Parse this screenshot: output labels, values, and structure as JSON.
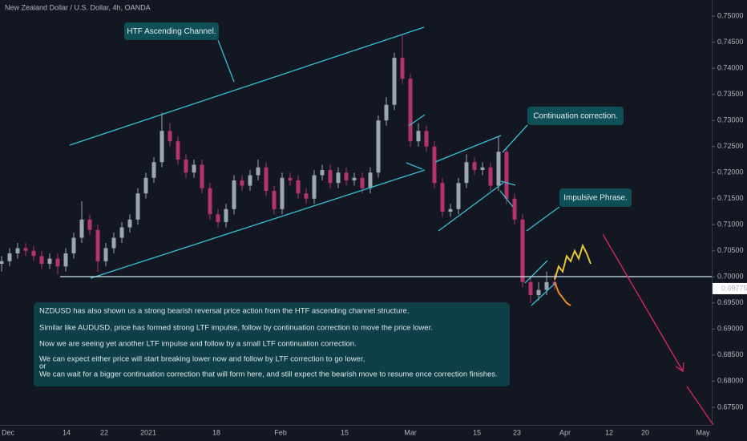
{
  "chart_data": {
    "type": "candlestick",
    "title": "New Zealand Dollar / U.S. Dollar, 4h, OANDA",
    "ylim": [
      0.6716,
      0.7531
    ],
    "yticks": [
      {
        "value": 0.675,
        "label": "0.67500"
      },
      {
        "value": 0.68,
        "label": "0.68000"
      },
      {
        "value": 0.685,
        "label": "0.68500"
      },
      {
        "value": 0.69,
        "label": "0.69000"
      },
      {
        "value": 0.695,
        "label": "0.69500"
      },
      {
        "value": 0.7,
        "label": "0.70000"
      },
      {
        "value": 0.705,
        "label": "0.70500"
      },
      {
        "value": 0.71,
        "label": "0.71000"
      },
      {
        "value": 0.715,
        "label": "0.71500"
      },
      {
        "value": 0.72,
        "label": "0.72000"
      },
      {
        "value": 0.725,
        "label": "0.72500"
      },
      {
        "value": 0.73,
        "label": "0.73000"
      },
      {
        "value": 0.735,
        "label": "0.73500"
      },
      {
        "value": 0.74,
        "label": "0.74000"
      },
      {
        "value": 0.745,
        "label": "0.74500"
      },
      {
        "value": 0.75,
        "label": "0.75000"
      }
    ],
    "xtick_labels": [
      "Dec",
      "14",
      "22",
      "2021",
      "18",
      "Feb",
      "15",
      "Mar",
      "15",
      "23",
      "Apr",
      "12",
      "20",
      "May"
    ],
    "up_color": "#9aa6b0",
    "down_color": "#b4336b",
    "last_price": 0.69775,
    "candles": [
      [
        0.7025,
        0.704,
        0.701,
        0.703
      ],
      [
        0.703,
        0.7055,
        0.702,
        0.7045
      ],
      [
        0.7045,
        0.7065,
        0.7035,
        0.7055
      ],
      [
        0.7055,
        0.7065,
        0.704,
        0.705
      ],
      [
        0.705,
        0.706,
        0.703,
        0.704
      ],
      [
        0.704,
        0.705,
        0.7015,
        0.7025
      ],
      [
        0.7025,
        0.7045,
        0.7015,
        0.7035
      ],
      [
        0.7035,
        0.7045,
        0.7005,
        0.702
      ],
      [
        0.702,
        0.7055,
        0.701,
        0.7045
      ],
      [
        0.7045,
        0.7085,
        0.7035,
        0.7075
      ],
      [
        0.7075,
        0.7145,
        0.7065,
        0.711
      ],
      [
        0.711,
        0.712,
        0.708,
        0.709
      ],
      [
        0.709,
        0.71,
        0.701,
        0.703
      ],
      [
        0.703,
        0.7065,
        0.702,
        0.7055
      ],
      [
        0.7055,
        0.7085,
        0.7045,
        0.7075
      ],
      [
        0.7075,
        0.7105,
        0.7065,
        0.7095
      ],
      [
        0.7095,
        0.712,
        0.7085,
        0.711
      ],
      [
        0.711,
        0.717,
        0.71,
        0.716
      ],
      [
        0.716,
        0.72,
        0.715,
        0.719
      ],
      [
        0.719,
        0.723,
        0.718,
        0.722
      ],
      [
        0.722,
        0.7315,
        0.721,
        0.728
      ],
      [
        0.728,
        0.7295,
        0.725,
        0.726
      ],
      [
        0.726,
        0.727,
        0.7215,
        0.7225
      ],
      [
        0.7225,
        0.7235,
        0.719,
        0.72
      ],
      [
        0.72,
        0.7225,
        0.719,
        0.7215
      ],
      [
        0.7215,
        0.7225,
        0.716,
        0.717
      ],
      [
        0.717,
        0.718,
        0.711,
        0.712
      ],
      [
        0.712,
        0.713,
        0.7095,
        0.7105
      ],
      [
        0.7105,
        0.714,
        0.7095,
        0.713
      ],
      [
        0.713,
        0.7195,
        0.712,
        0.7185
      ],
      [
        0.7185,
        0.7195,
        0.7165,
        0.7175
      ],
      [
        0.7175,
        0.7205,
        0.7165,
        0.7195
      ],
      [
        0.7195,
        0.7225,
        0.7185,
        0.721
      ],
      [
        0.721,
        0.722,
        0.7155,
        0.7165
      ],
      [
        0.7165,
        0.7175,
        0.712,
        0.713
      ],
      [
        0.713,
        0.72,
        0.712,
        0.719
      ],
      [
        0.719,
        0.72,
        0.7175,
        0.7185
      ],
      [
        0.7185,
        0.7195,
        0.715,
        0.716
      ],
      [
        0.716,
        0.717,
        0.714,
        0.715
      ],
      [
        0.715,
        0.7205,
        0.714,
        0.7195
      ],
      [
        0.7195,
        0.7215,
        0.7185,
        0.7205
      ],
      [
        0.7205,
        0.7215,
        0.717,
        0.718
      ],
      [
        0.718,
        0.721,
        0.717,
        0.72
      ],
      [
        0.72,
        0.721,
        0.7175,
        0.7185
      ],
      [
        0.7185,
        0.72,
        0.7175,
        0.719
      ],
      [
        0.719,
        0.72,
        0.716,
        0.717
      ],
      [
        0.717,
        0.721,
        0.716,
        0.72
      ],
      [
        0.72,
        0.731,
        0.719,
        0.73
      ],
      [
        0.73,
        0.7345,
        0.729,
        0.733
      ],
      [
        0.733,
        0.743,
        0.732,
        0.742
      ],
      [
        0.742,
        0.7465,
        0.737,
        0.738
      ],
      [
        0.738,
        0.739,
        0.725,
        0.726
      ],
      [
        0.726,
        0.7295,
        0.725,
        0.728
      ],
      [
        0.728,
        0.729,
        0.724,
        0.725
      ],
      [
        0.725,
        0.726,
        0.717,
        0.718
      ],
      [
        0.718,
        0.719,
        0.7115,
        0.7125
      ],
      [
        0.7125,
        0.714,
        0.7115,
        0.713
      ],
      [
        0.713,
        0.719,
        0.712,
        0.718
      ],
      [
        0.718,
        0.7235,
        0.717,
        0.722
      ],
      [
        0.722,
        0.723,
        0.7195,
        0.7205
      ],
      [
        0.7205,
        0.722,
        0.7195,
        0.721
      ],
      [
        0.721,
        0.722,
        0.7165,
        0.7175
      ],
      [
        0.7175,
        0.727,
        0.7165,
        0.724
      ],
      [
        0.724,
        0.725,
        0.714,
        0.715
      ],
      [
        0.715,
        0.716,
        0.71,
        0.711
      ],
      [
        0.711,
        0.712,
        0.698,
        0.699
      ],
      [
        0.699,
        0.7,
        0.695,
        0.6965
      ],
      [
        0.6965,
        0.699,
        0.6955,
        0.6975
      ],
      [
        0.6975,
        0.701,
        0.6965,
        0.699
      ],
      [
        0.699,
        0.7005,
        0.6975,
        0.6985
      ]
    ],
    "projections": [
      {
        "color": "#e8c43a",
        "values": [
          0.6995,
          0.702,
          0.701,
          0.704,
          0.703,
          0.705,
          0.7035,
          0.706,
          0.7045,
          0.7025
        ]
      },
      {
        "color": "#f08c1e",
        "values": [
          0.699,
          0.697,
          0.696,
          0.695,
          0.6945
        ]
      }
    ],
    "annotations": [
      "HTF Ascending Channel.",
      "Continuation correction.",
      "Impulsive Phrase."
    ],
    "notes": [
      "NZDUSD has also shown us a strong bearish reversal price action from the HTF ascending channel structure.",
      "Similar like AUDUSD, price has formed strong LTF impulse, follow by continuation correction to move the price lower.",
      "Now we are seeing yet another LTF impulse and follow by a small LTF continuation correction.",
      "We can expect either price will start breaking lower now and follow by LTF correction to go lower,",
      "or",
      "We can wait for a bigger continuation correction that will form here, and still expect the bearish move to resume once correction finishes."
    ]
  }
}
